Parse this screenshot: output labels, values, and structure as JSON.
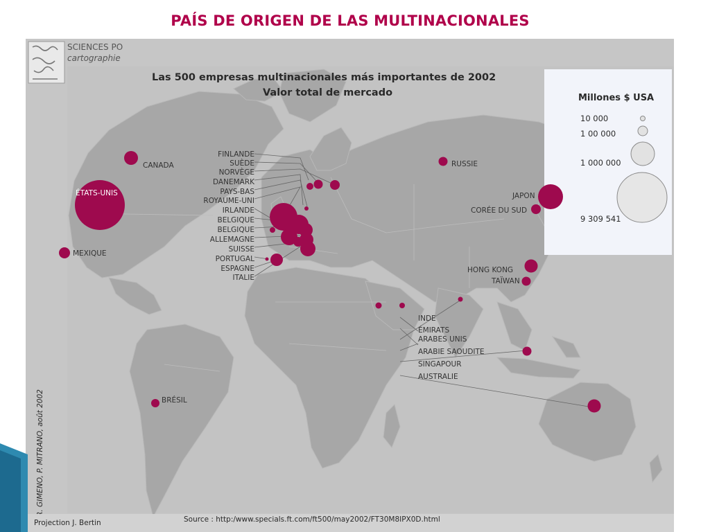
{
  "slide_title": "PAÍS DE ORIGEN DE LAS MULTINACIONALES",
  "logo": {
    "line1": "SCIENCES PO",
    "line2": "cartographie"
  },
  "map": {
    "title_line1": "Las 500 empresas multinacionales más importantes de 2002",
    "title_line2": "Valor total de mercado",
    "credit_vertical": "R. GIMENO, P. MITRANO, août 2002",
    "projection": "Projection J. Bertin",
    "source": "Source : http:/www.specials.ft.com/ft500/may2002/FT30M8IPX0D.html"
  },
  "legend": {
    "title": "Millones $ USA",
    "items": [
      "10 000",
      "1 00 000",
      "1 000 000",
      "9 309 541"
    ]
  },
  "countries": {
    "canada": "CANADA",
    "etats_unis": "ÉTATS-UNIS",
    "mexique": "MEXIQUE",
    "bresil": "BRÉSIL",
    "russie": "RUSSIE",
    "japon": "JAPON",
    "coree": "CORÉE DU SUD",
    "hong_kong": "HONG KONG",
    "taiwan": "TAÏWAN",
    "inde": "INDE",
    "emirats_1": "ÉMIRATS",
    "emirats_2": "ARABES UNIS",
    "arabie": "ARABIE SAOUDITE",
    "singapour": "SINGAPOUR",
    "australie": "AUSTRALIE",
    "europe": [
      "FINLANDE",
      "SUÈDE",
      "NORVÈGE",
      "DANEMARK",
      "PAYS-BAS",
      "ROYAUME-UNI",
      "IRLANDE",
      "BELGIQUE",
      "BELGIQUE",
      "ALLEMAGNE",
      "SUISSE",
      "PORTUGAL",
      "ESPAGNE",
      "ITALIE"
    ]
  },
  "colors": {
    "bubble": "#9e0a4e",
    "land": "#a6a6a6",
    "sea": "#c6c6c6",
    "legend_bg": "#f2f4fa",
    "title": "#b0004a"
  }
}
